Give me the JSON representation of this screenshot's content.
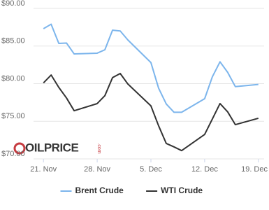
{
  "chart_data": {
    "type": "line",
    "x": [
      0,
      1,
      2,
      3,
      4,
      7,
      8,
      9,
      10,
      11,
      14,
      15,
      16,
      17,
      18,
      21,
      22,
      23,
      24,
      25,
      28
    ],
    "series": [
      {
        "name": "Brent Crude",
        "color": "#7cb5ec",
        "values": [
          87.3,
          87.9,
          85.35,
          85.4,
          83.95,
          84.05,
          84.5,
          87.1,
          87.0,
          85.8,
          82.8,
          79.4,
          77.3,
          76.2,
          76.2,
          78.0,
          80.9,
          82.9,
          81.5,
          79.6,
          79.9
        ]
      },
      {
        "name": "WTI Crude",
        "color": "#333333",
        "values": [
          80.1,
          81.15,
          79.5,
          78.1,
          76.4,
          77.35,
          78.4,
          80.8,
          81.35,
          79.95,
          77.05,
          74.4,
          72.05,
          71.6,
          71.1,
          73.25,
          75.3,
          77.35,
          76.25,
          74.55,
          75.4
        ]
      }
    ],
    "xlim": [
      -0.2,
      28.2
    ],
    "xticks": [
      {
        "value": 0,
        "label": "21. Nov"
      },
      {
        "value": 7,
        "label": "28. Nov"
      },
      {
        "value": 14,
        "label": "5. Dec"
      },
      {
        "value": 21,
        "label": "12. Dec"
      },
      {
        "value": 28,
        "label": "19. Dec"
      }
    ],
    "ylim": [
      70,
      90
    ],
    "yticks": [
      {
        "value": 70,
        "label": "$70.00"
      },
      {
        "value": 75,
        "label": "$75.00"
      },
      {
        "value": 80,
        "label": "$80.00"
      },
      {
        "value": 85,
        "label": "$85.00"
      },
      {
        "value": 90,
        "label": "$90.00"
      }
    ],
    "grid": true,
    "legend": "bottom",
    "watermark": {
      "brand": "OILPRICE",
      "suffix": ".com"
    }
  }
}
